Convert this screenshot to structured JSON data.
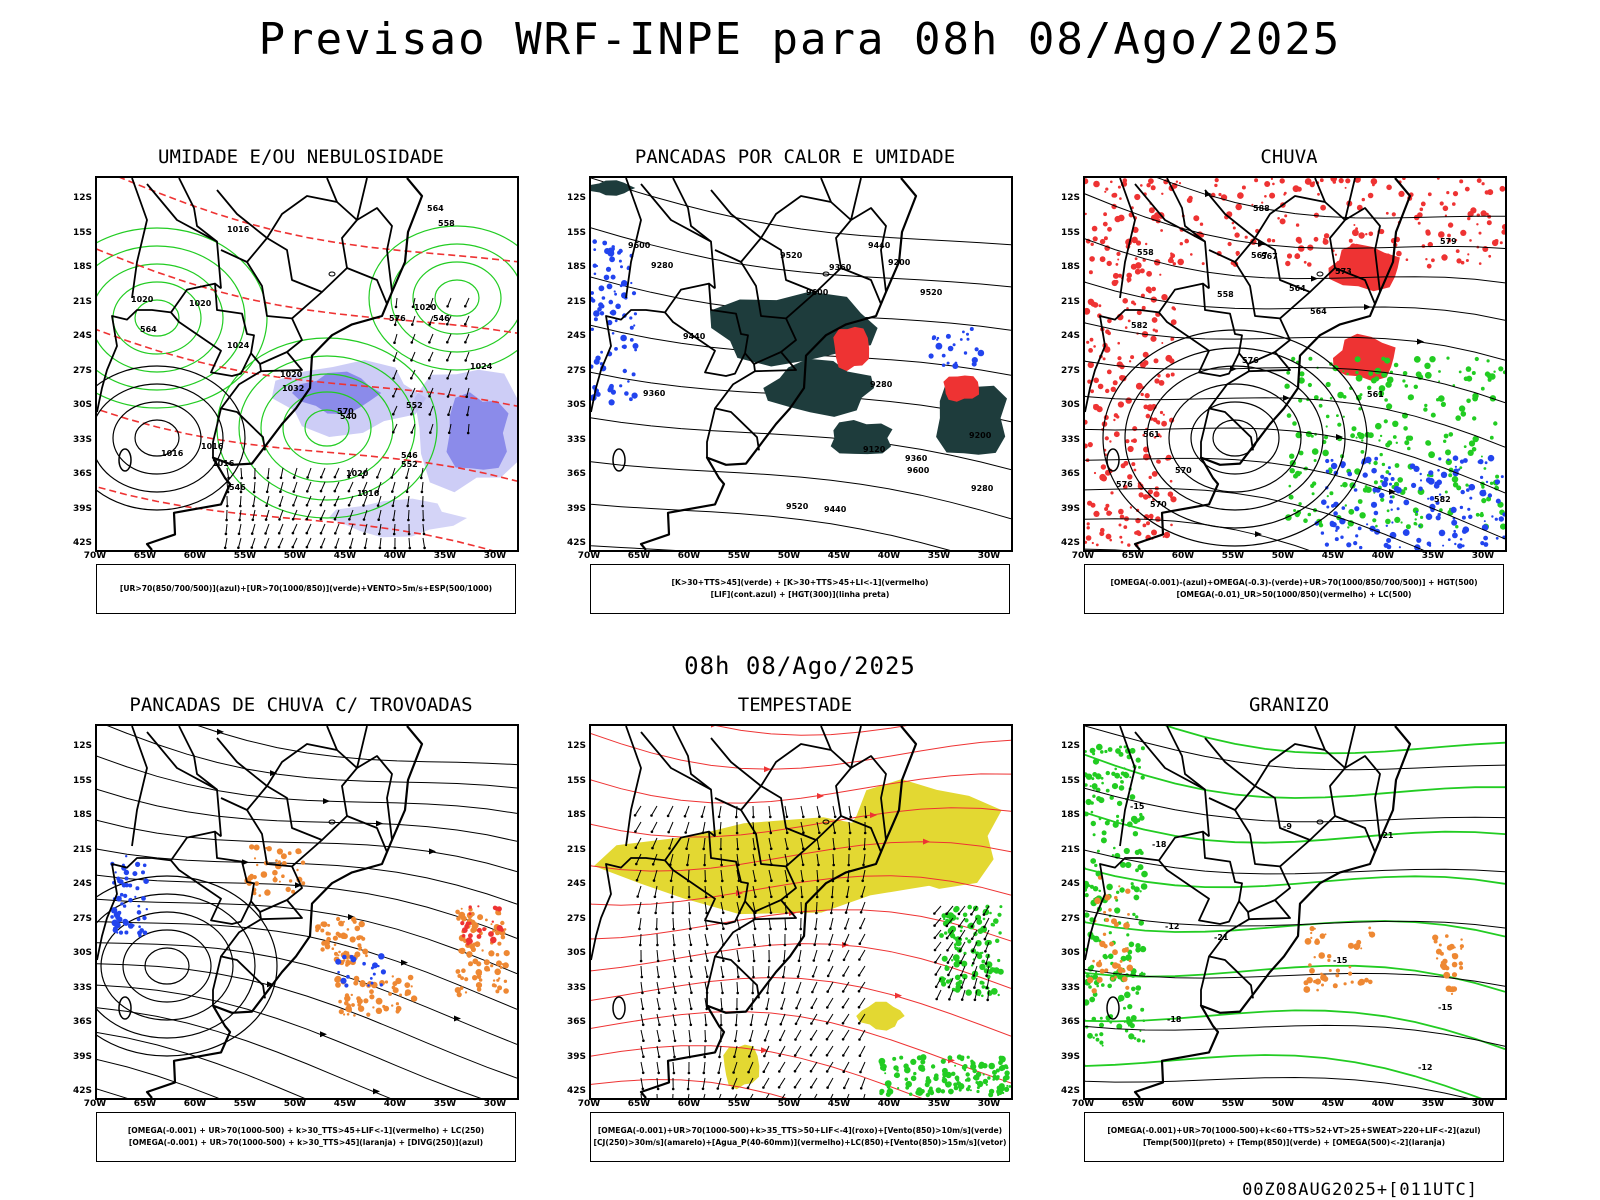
{
  "header": {
    "title": "Previsao WRF-INPE  para 08h 08/Ago/2025"
  },
  "mid_date": "08h 08/Ago/2025",
  "footer": "00Z08AUG2025+[011UTC]",
  "axes": {
    "lat_labels": [
      "12S",
      "15S",
      "18S",
      "21S",
      "24S",
      "27S",
      "30S",
      "33S",
      "36S",
      "39S",
      "42S"
    ],
    "lon_labels": [
      "70W",
      "65W",
      "60W",
      "55W",
      "50W",
      "45W",
      "40W",
      "35W",
      "30W"
    ]
  },
  "panels": [
    {
      "title": "UMIDADE E/OU NEBULOSIDADE",
      "legend": [
        "[UR>70(850/700/500)](azul)+[UR>70(1000/850)](verde)+VENTO>5m/s+ESP(500/1000)"
      ],
      "contour_labels": [
        "1016",
        "1016",
        "1016",
        "1020",
        "1020",
        "1020",
        "1024",
        "1024",
        "1032",
        "1016",
        "1016",
        "1020",
        "1020",
        "570",
        "576",
        "564",
        "564",
        "558",
        "552",
        "546",
        "546",
        "540",
        "546",
        "552"
      ],
      "colors": {
        "fill_primary": "#7f7fe8",
        "fill_secondary": "#b8b8f2",
        "contour_a": "#22cc22",
        "contour_b": "#ee3333"
      }
    },
    {
      "title": "PANCADAS POR CALOR E UMIDADE",
      "legend": [
        "[K>30+TTS>45](verde) + [K>30+TTS>45+LI<-1](vermelho)",
        "[LIF](cont.azul) + [HGT(300)](linha preta)"
      ],
      "contour_labels": [
        "9600",
        "9600",
        "9600",
        "9520",
        "9520",
        "9520",
        "9440",
        "9440",
        "9440",
        "9360",
        "9360",
        "9360",
        "9280",
        "9280",
        "9280",
        "9200",
        "9200",
        "9120"
      ],
      "colors": {
        "fill_primary": "#1e3c3c",
        "fill_secondary": "#ee3333",
        "contour_a": "#2244ee"
      }
    },
    {
      "title": "CHUVA",
      "legend": [
        "[OMEGA(-0.001)-(azul)+OMEGA(-0.3)-(verde)+UR>70(1000/850/700/500)] + HGT(500)",
        "[OMEGA(-0.01)_UR>50(1000/850)(vermelho) + LC(500)"
      ],
      "contour_labels": [
        "582",
        "582",
        "579",
        "576",
        "573",
        "570",
        "567",
        "564",
        "561",
        "558",
        "576",
        "570",
        "567",
        "564",
        "561",
        "558",
        "588"
      ],
      "colors": {
        "fill_primary": "#ee3333",
        "fill_secondary": "#22cc22",
        "fill_tertiary": "#2244ee"
      }
    },
    {
      "title": "PANCADAS DE CHUVA C/ TROVOADAS",
      "legend": [
        "[OMEGA(-0.001) + UR>70(1000-500) + k>30_TTS>45+LIF<-1](vermelho) + LC(250)",
        "[OMEGA(-0.001) + UR>70(1000-500) + k>30_TTS>45](laranja) + [DIVG(250)](azul)"
      ],
      "colors": {
        "fill_primary": "#ee8833",
        "fill_secondary": "#2244ee",
        "fill_tertiary": "#ee3333"
      }
    },
    {
      "title": "TEMPESTADE",
      "legend": [
        "[OMEGA(-0.001)+UR>70(1000-500)+k>35_TTS>50+LIF<-4](roxo)+[Vento(850)>10m/s](verde)",
        "[CJ(250)>30m/s](amarelo)+[Agua_P(40-60mm)](vermelho)+LC(850)+[Vento(850)>15m/s](vetor)"
      ],
      "colors": {
        "fill_primary": "#e3d832",
        "fill_secondary": "#22cc22",
        "contour_a": "#ee3333"
      }
    },
    {
      "title": "GRANIZO",
      "legend": [
        "[OMEGA(-0.001)+UR>70(1000-500)+k<60+TTS>52+VT>25+SWEAT>220+LIF<-2](azul)",
        "[Temp(500)](preto) + [Temp(850)](verde) + [OMEGA(500)<-2](laranja)"
      ],
      "contour_labels": [
        "-12",
        "-12",
        "-15",
        "-15",
        "-15",
        "-18",
        "-18",
        "-21",
        "-21",
        "-9"
      ],
      "colors": {
        "contour_a": "#22cc22",
        "fill_primary": "#ee8833"
      }
    }
  ]
}
